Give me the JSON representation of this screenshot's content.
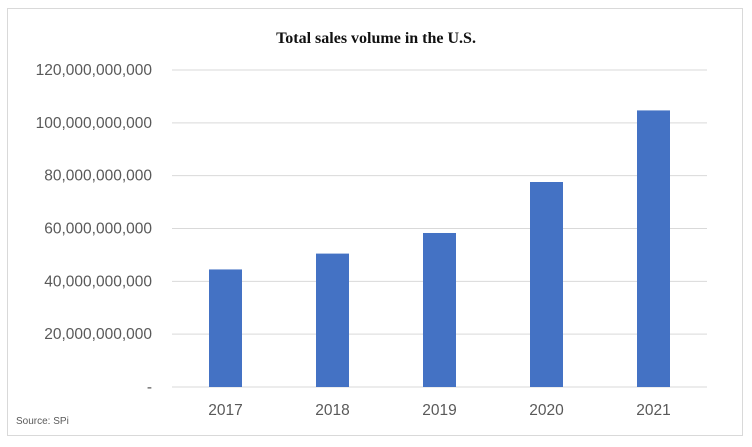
{
  "chart_data": {
    "type": "bar",
    "title": "Total sales volume in the U.S.",
    "categories": [
      "2017",
      "2018",
      "2019",
      "2020",
      "2021"
    ],
    "values": [
      44500000000,
      50500000000,
      58300000000,
      77600000000,
      104700000000
    ],
    "ylim": [
      0,
      120000000000
    ],
    "yticks": [
      0,
      20000000000,
      40000000000,
      60000000000,
      80000000000,
      100000000000,
      120000000000
    ],
    "ytick_labels": [
      "-",
      "20,000,000,000",
      "40,000,000,000",
      "60,000,000,000",
      "80,000,000,000",
      "100,000,000,000",
      "120,000,000,000"
    ],
    "xlabel": "",
    "ylabel": "",
    "grid": true,
    "bar_color": "#4472c4",
    "grid_color": "#d9d9d9"
  },
  "source_note": "Source: SPi"
}
